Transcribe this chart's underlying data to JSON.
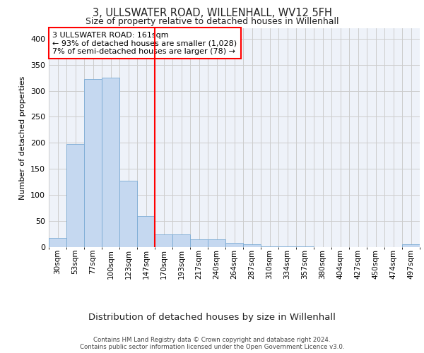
{
  "title": "3, ULLSWATER ROAD, WILLENHALL, WV12 5FH",
  "subtitle": "Size of property relative to detached houses in Willenhall",
  "xlabel": "Distribution of detached houses by size in Willenhall",
  "ylabel": "Number of detached properties",
  "bar_labels": [
    "30sqm",
    "53sqm",
    "77sqm",
    "100sqm",
    "123sqm",
    "147sqm",
    "170sqm",
    "193sqm",
    "217sqm",
    "240sqm",
    "264sqm",
    "287sqm",
    "310sqm",
    "334sqm",
    "357sqm",
    "380sqm",
    "404sqm",
    "427sqm",
    "450sqm",
    "474sqm",
    "497sqm"
  ],
  "bar_values": [
    18,
    198,
    322,
    325,
    128,
    60,
    25,
    25,
    15,
    15,
    8,
    5,
    2,
    2,
    2,
    0,
    0,
    0,
    0,
    0,
    5
  ],
  "bar_color": "#c5d8f0",
  "bar_edge_color": "#7aaad4",
  "vline_color": "red",
  "vline_x": 6.0,
  "annotation_text": "3 ULLSWATER ROAD: 161sqm\n← 93% of detached houses are smaller (1,028)\n7% of semi-detached houses are larger (78) →",
  "ylim": [
    0,
    420
  ],
  "yticks": [
    0,
    50,
    100,
    150,
    200,
    250,
    300,
    350,
    400
  ],
  "footer_text": "Contains HM Land Registry data © Crown copyright and database right 2024.\nContains public sector information licensed under the Open Government Licence v3.0.",
  "grid_color": "#cccccc",
  "bg_color": "#eef2f9"
}
